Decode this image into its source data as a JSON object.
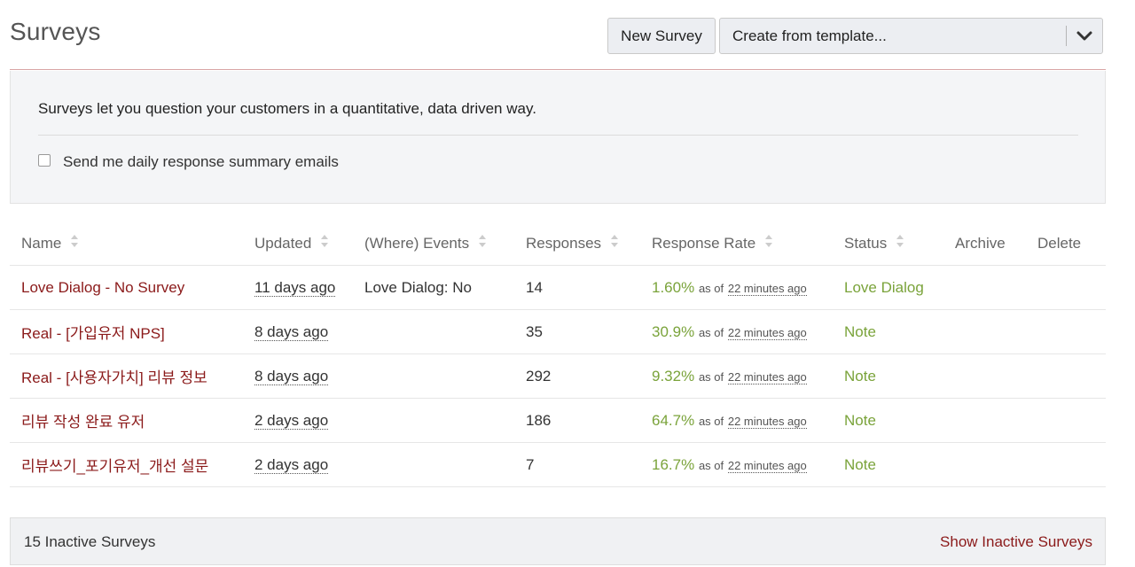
{
  "header": {
    "title": "Surveys",
    "new_survey_label": "New Survey",
    "template_select": "Create from template..."
  },
  "info": {
    "description": "Surveys let you question your customers in a quantitative, data driven way.",
    "checkbox_label": "Send me daily response summary emails",
    "checkbox_checked": false
  },
  "table": {
    "columns": {
      "name": "Name",
      "updated": "Updated",
      "events": "(Where) Events",
      "responses": "Responses",
      "rate": "Response Rate",
      "status": "Status",
      "archive": "Archive",
      "delete": "Delete"
    },
    "as_of_label": "as of",
    "rows": [
      {
        "name": "Love Dialog - No Survey",
        "updated": "11 days ago",
        "events": "Love Dialog: No",
        "responses": "14",
        "rate": "1.60%",
        "as_of": "22 minutes ago",
        "status": "Love Dialog"
      },
      {
        "name": "Real - [가입유저 NPS]",
        "updated": "8 days ago",
        "events": "",
        "responses": "35",
        "rate": "30.9%",
        "as_of": "22 minutes ago",
        "status": "Note"
      },
      {
        "name": "Real - [사용자가치] 리뷰 정보",
        "updated": "8 days ago",
        "events": "",
        "responses": "292",
        "rate": "9.32%",
        "as_of": "22 minutes ago",
        "status": "Note"
      },
      {
        "name": "리뷰 작성 완료 유저",
        "updated": "2 days ago",
        "events": "",
        "responses": "186",
        "rate": "64.7%",
        "as_of": "22 minutes ago",
        "status": "Note"
      },
      {
        "name": "리뷰쓰기_포기유저_개선 설문",
        "updated": "2 days ago",
        "events": "",
        "responses": "7",
        "rate": "16.7%",
        "as_of": "22 minutes ago",
        "status": "Note"
      }
    ]
  },
  "footer": {
    "inactive_count": "15 Inactive Surveys",
    "show_inactive_label": "Show Inactive Surveys"
  },
  "colors": {
    "link": "#8b1a1a",
    "success": "#7aa33a",
    "header_rule": "#d9a5a5",
    "panel_bg": "#f4f5f7"
  },
  "icons": {
    "sort": "sort-icon",
    "dropdown": "chevron-down-icon"
  }
}
